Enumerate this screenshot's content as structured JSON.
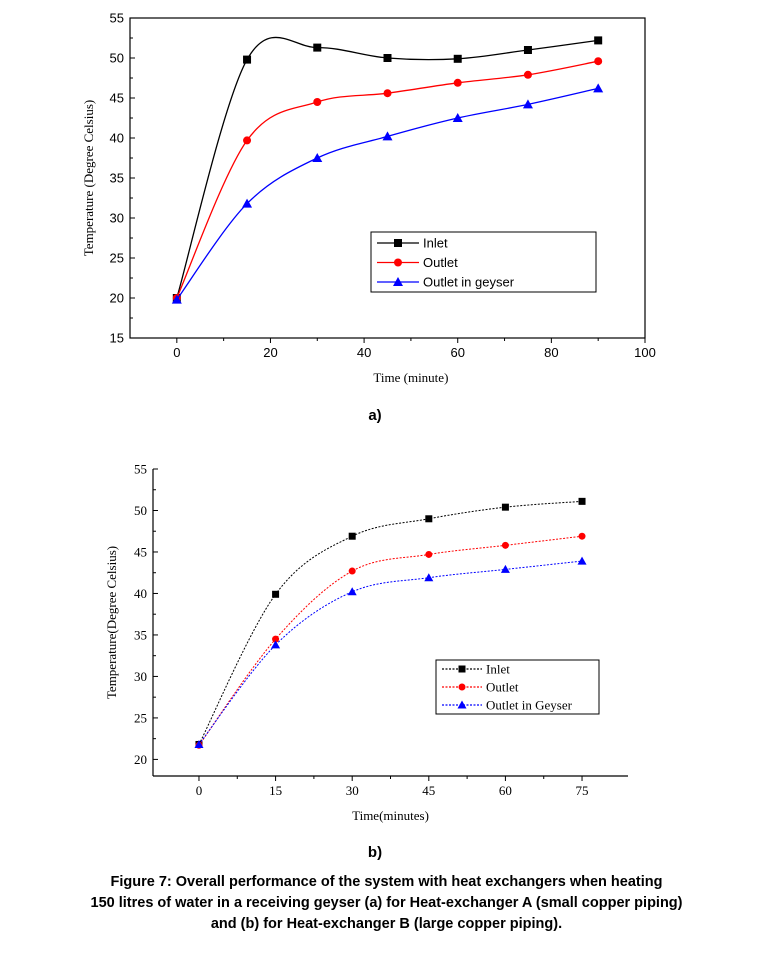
{
  "chart_data": [
    {
      "type": "line",
      "panel_label": "a)",
      "xlabel": "Time (minute)",
      "ylabel": "Temperature (Degree Celsius)",
      "xlim": [
        -10,
        100
      ],
      "ylim": [
        15,
        55
      ],
      "xticks": [
        0,
        20,
        40,
        60,
        80,
        100
      ],
      "yticks": [
        15,
        20,
        25,
        30,
        35,
        40,
        45,
        50,
        55
      ],
      "x": [
        0,
        15,
        30,
        45,
        60,
        75,
        90
      ],
      "legend_position": "center-right",
      "series": [
        {
          "name": "Inlet",
          "marker": "square",
          "color": "#000000",
          "values": [
            20,
            49.8,
            51.3,
            50.0,
            49.9,
            51.0,
            52.2
          ]
        },
        {
          "name": "Outlet",
          "marker": "circle",
          "color": "#ff0000",
          "values": [
            20,
            39.7,
            44.5,
            45.6,
            46.9,
            47.9,
            49.6
          ]
        },
        {
          "name": "Outlet in geyser",
          "marker": "triangle",
          "color": "#0000ff",
          "values": [
            19.8,
            31.8,
            37.5,
            40.2,
            42.5,
            44.2,
            46.2
          ]
        }
      ]
    },
    {
      "type": "line",
      "panel_label": "b)",
      "xlabel": "Time(minutes)",
      "ylabel": "Temperature(Degree Celsius)",
      "xlim": [
        -9,
        84
      ],
      "ylim": [
        18,
        55
      ],
      "xticks": [
        0,
        15,
        30,
        45,
        60,
        75
      ],
      "yticks": [
        20,
        25,
        30,
        35,
        40,
        45,
        50,
        55
      ],
      "x": [
        0,
        15,
        30,
        45,
        60,
        75
      ],
      "legend_position": "lower-right",
      "series": [
        {
          "name": "Inlet",
          "marker": "square",
          "color": "#000000",
          "values": [
            21.8,
            39.9,
            46.9,
            49.0,
            50.4,
            51.1
          ]
        },
        {
          "name": "Outlet",
          "marker": "circle",
          "color": "#ff0000",
          "values": [
            21.7,
            34.5,
            42.7,
            44.7,
            45.8,
            46.9
          ]
        },
        {
          "name": "Outlet in Geyser",
          "marker": "triangle",
          "color": "#0000ff",
          "values": [
            21.8,
            33.8,
            40.2,
            41.9,
            42.9,
            43.9
          ]
        }
      ]
    }
  ],
  "caption": {
    "line1": "Figure 7: Overall performance of the system with heat exchangers when heating",
    "line2": "150 litres of water in a receiving geyser (a) for Heat-exchanger A (small copper piping)",
    "line3": "and (b) for Heat-exchanger B (large copper piping)."
  }
}
